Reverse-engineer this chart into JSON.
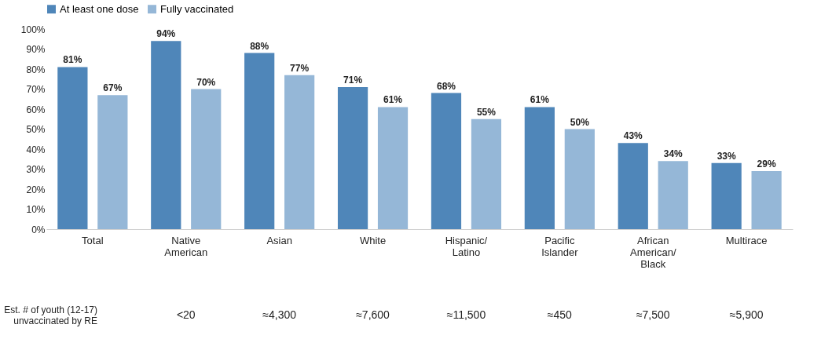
{
  "chart_data": {
    "type": "bar",
    "categories": [
      "Total",
      "Native\nAmerican",
      "Asian",
      "White",
      "Hispanic/\nLatino",
      "Pacific\nIslander",
      "African\nAmerican/\nBlack",
      "Multirace"
    ],
    "series": [
      {
        "name": "At least one dose",
        "color": "#4f86b9",
        "values": [
          81,
          94,
          88,
          71,
          68,
          61,
          43,
          33
        ],
        "value_labels": [
          "81%",
          "94%",
          "88%",
          "71%",
          "68%",
          "61%",
          "43%",
          "33%"
        ]
      },
      {
        "name": "Fully vaccinated",
        "color": "#95b7d7",
        "values": [
          67,
          70,
          77,
          61,
          55,
          50,
          34,
          29
        ],
        "value_labels": [
          "67%",
          "70%",
          "77%",
          "61%",
          "55%",
          "50%",
          "34%",
          "29%"
        ]
      }
    ],
    "ylim": [
      0,
      100
    ],
    "yticks": [
      {
        "value": 0,
        "label": "0%"
      },
      {
        "value": 10,
        "label": "10%"
      },
      {
        "value": 20,
        "label": "20%"
      },
      {
        "value": 30,
        "label": "30%"
      },
      {
        "value": 40,
        "label": "40%"
      },
      {
        "value": 50,
        "label": "50%"
      },
      {
        "value": 60,
        "label": "60%"
      },
      {
        "value": 70,
        "label": "70%"
      },
      {
        "value": 80,
        "label": "80%"
      },
      {
        "value": 90,
        "label": "90%"
      },
      {
        "value": 100,
        "label": "100%"
      }
    ],
    "grid": false,
    "legend": "top",
    "annotations": [
      "Est. # of youth (12-17)\nunvaccinated by RE",
      "<20",
      "≈4,300",
      "≈7,600",
      "≈11,500",
      "≈450",
      "≈7,500",
      "≈5,900"
    ]
  }
}
